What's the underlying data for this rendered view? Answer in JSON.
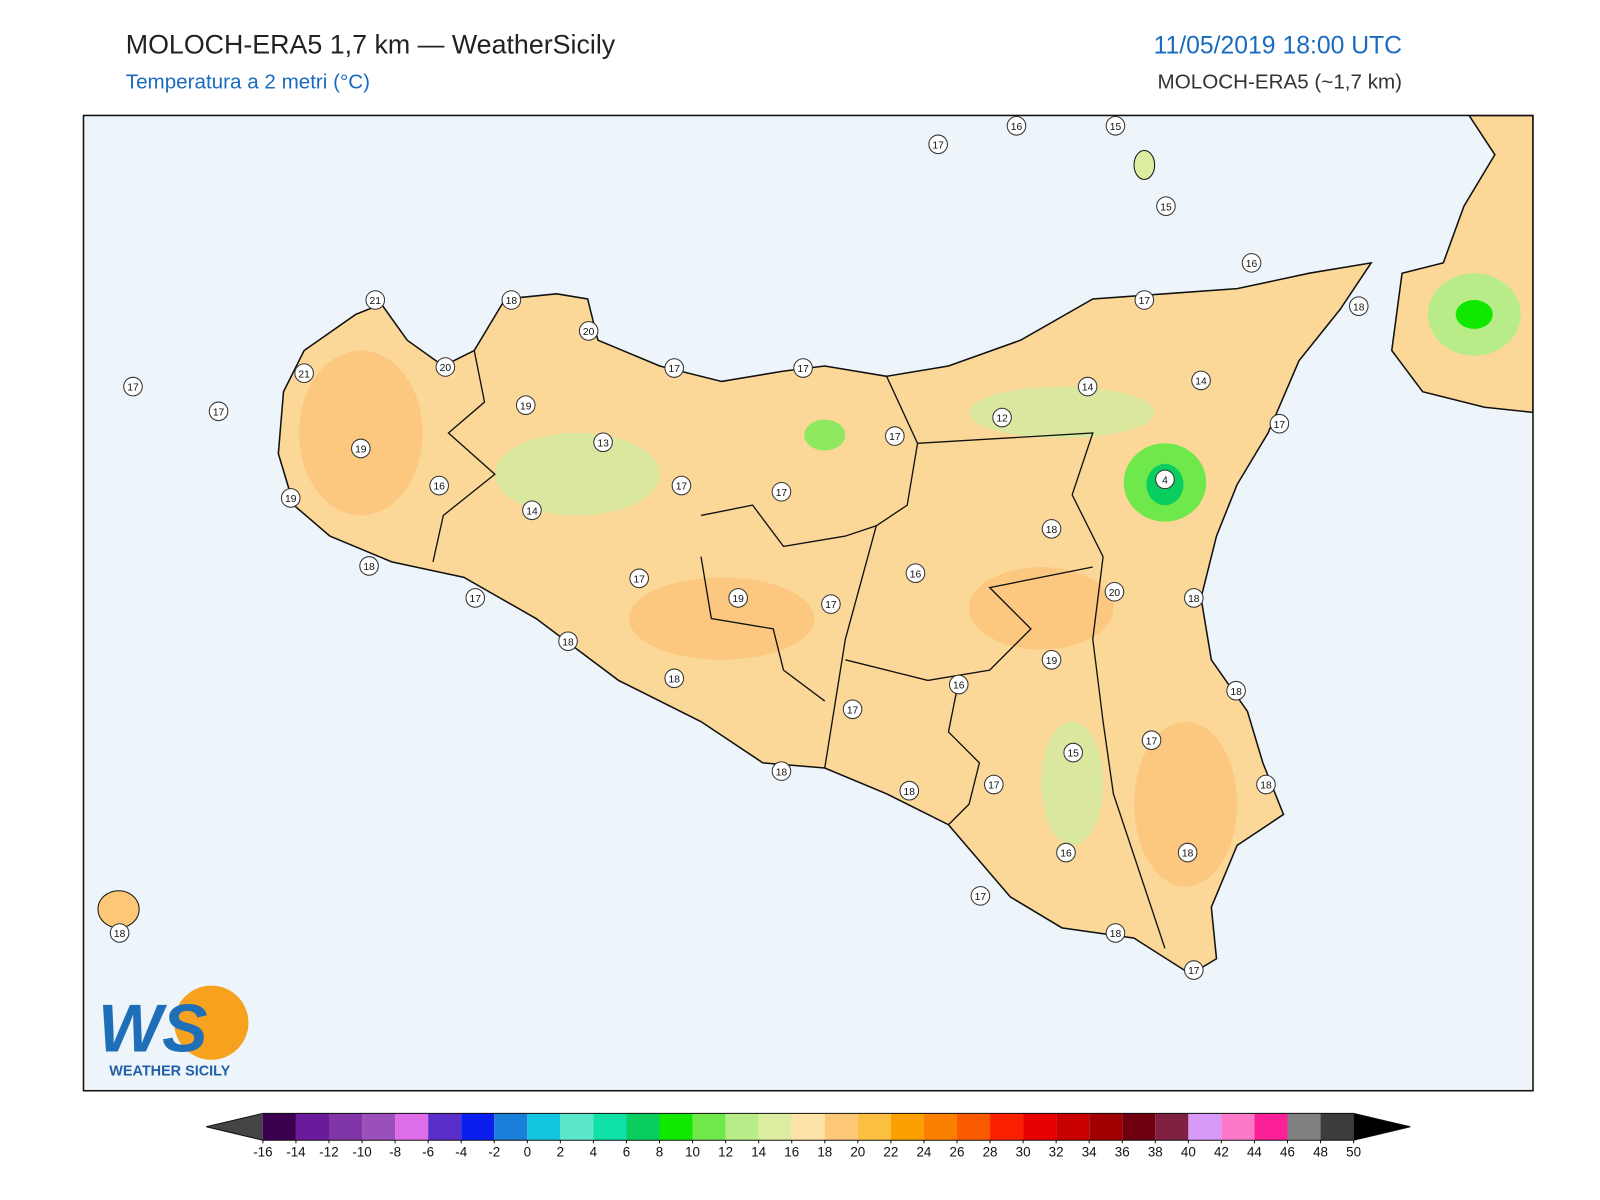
{
  "header": {
    "title": "MOLOCH-ERA5 1,7 km — WeatherSicily",
    "subtitle": "Temperatura a 2 metri (°C)",
    "datetime": "11/05/2019 18:00 UTC",
    "model": "MOLOCH-ERA5 (~1,7 km)"
  },
  "map": {
    "stations": [
      17,
      16,
      15,
      15,
      16,
      17,
      18,
      21,
      18,
      20,
      20,
      21,
      17,
      17,
      17,
      17,
      19,
      14,
      14,
      12,
      19,
      13,
      17,
      17,
      4,
      16,
      17,
      17,
      19,
      14,
      18,
      16,
      18,
      17,
      20,
      18,
      17,
      19,
      17,
      18,
      19,
      18,
      16,
      18,
      17,
      17,
      15,
      18,
      18,
      17,
      18,
      16,
      18,
      17,
      18,
      18,
      17
    ]
  },
  "colorbar": {
    "ticks": [
      -16,
      -14,
      -12,
      -10,
      -8,
      -6,
      -4,
      -2,
      0,
      2,
      4,
      6,
      8,
      10,
      12,
      14,
      16,
      18,
      20,
      22,
      24,
      26,
      28,
      30,
      32,
      34,
      36,
      38,
      40,
      42,
      44,
      46,
      48,
      50
    ],
    "colors": [
      "#3b0050",
      "#6a1a9a",
      "#7f35a8",
      "#9b4fb8",
      "#dd6de8",
      "#5a2ec8",
      "#0a1ef0",
      "#1a7fd8",
      "#13c6e0",
      "#5ae8c8",
      "#0ee0a8",
      "#0acd60",
      "#10e800",
      "#6ee84a",
      "#b8ec88",
      "#dceca0",
      "#fde3a8",
      "#fcc878",
      "#fcc040",
      "#fca000",
      "#fc8000",
      "#fc5a00",
      "#fc2000",
      "#e60000",
      "#c80000",
      "#a00000",
      "#700010",
      "#802040",
      "#d89af8",
      "#fc78c8",
      "#fc2098",
      "#808080",
      "#3c3c3c"
    ],
    "under_color": "#444444",
    "over_color": "#000000"
  },
  "logo": {
    "mark": "WS",
    "name": "WEATHER SICILY"
  }
}
